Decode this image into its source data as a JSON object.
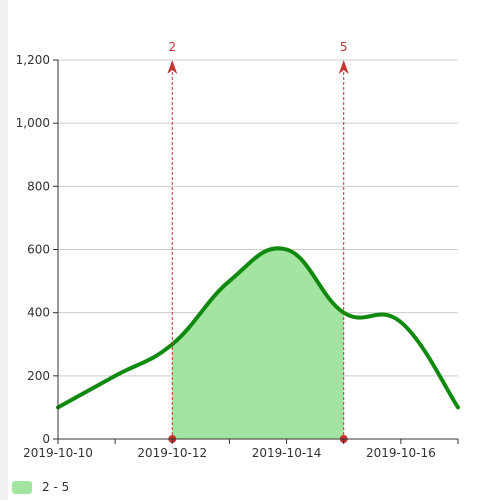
{
  "chart_data": {
    "type": "line",
    "x": [
      "2019-10-10",
      "2019-10-11",
      "2019-10-12",
      "2019-10-13",
      "2019-10-14",
      "2019-10-15",
      "2019-10-16",
      "2019-10-17"
    ],
    "series": [
      {
        "values": [
          100,
          200,
          300,
          500,
          600,
          400,
          370,
          100
        ]
      }
    ],
    "x_ticks": [
      "2019-10-10",
      "2019-10-12",
      "2019-10-14",
      "2019-10-16"
    ],
    "y_ticks": [
      "0",
      "200",
      "400",
      "600",
      "800",
      "1,000",
      "1,200"
    ],
    "ylim": [
      0,
      1200
    ],
    "grid": true,
    "markers": [
      {
        "label": "2",
        "x": "2019-10-12"
      },
      {
        "label": "5",
        "x": "2019-10-15"
      }
    ],
    "highlight_area": {
      "from": "2019-10-12",
      "to": "2019-10-15"
    },
    "legend": {
      "label": "2 - 5",
      "position": "bottom-left"
    },
    "colors": {
      "line": "#0f8a0f",
      "area": "#a3e4a1",
      "marker": "#c23531",
      "grid": "#cccccc",
      "axis": "#333333"
    }
  }
}
